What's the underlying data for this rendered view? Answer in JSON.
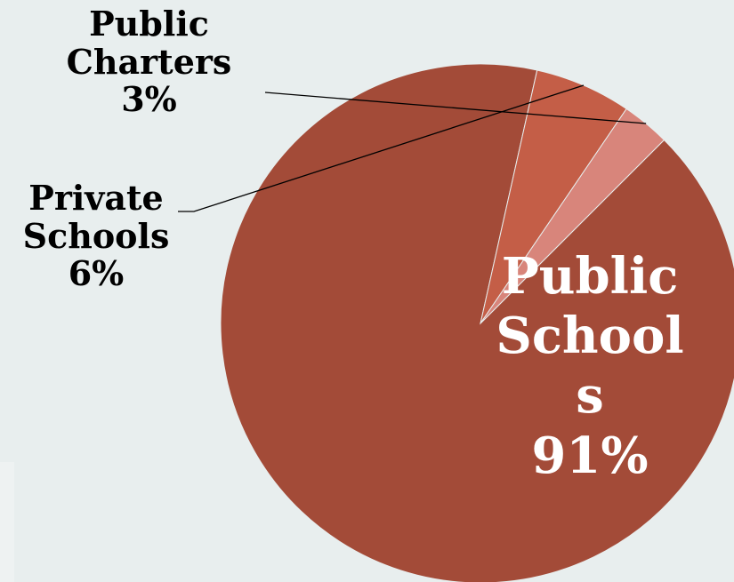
{
  "chart_data": {
    "type": "pie",
    "title": "",
    "slices": [
      {
        "label_lines": [
          "Public",
          "School",
          "s"
        ],
        "value": 91,
        "pct_label": "91%",
        "color": "#a34b38"
      },
      {
        "label_lines": [
          "Private",
          "Schools"
        ],
        "value": 6,
        "pct_label": "6%",
        "color": "#c45e47"
      },
      {
        "label_lines": [
          "Public",
          "Charters"
        ],
        "value": 3,
        "pct_label": "3%",
        "color": "#d8857b"
      }
    ],
    "start_angle_deg": -45,
    "colors": {
      "background": "#e8eeee",
      "leader_line": "#000000"
    }
  }
}
